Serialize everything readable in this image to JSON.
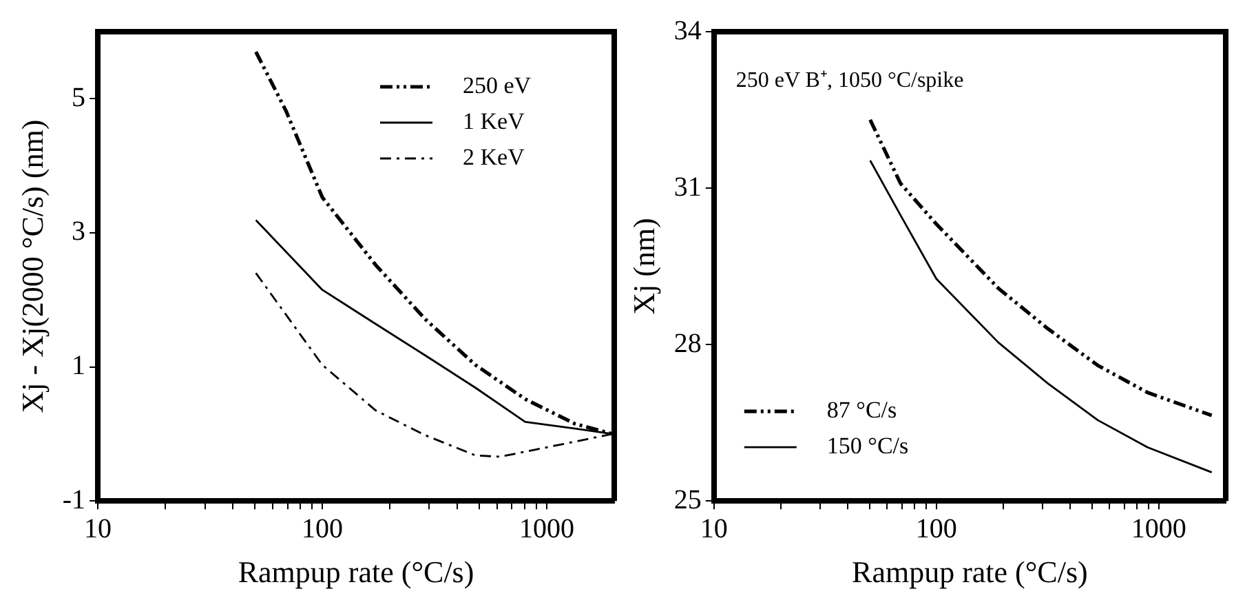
{
  "chart_data": [
    {
      "type": "line",
      "xlabel": "Rampup rate (°C/s)",
      "ylabel": "Xj - Xj(2000 °C/s) (nm)",
      "log": "x",
      "xlim": [
        10,
        2000
      ],
      "ylim": [
        -1,
        6
      ],
      "xticks": [
        10,
        {
          "value": 20,
          "label": null
        },
        {
          "value": 30,
          "label": null
        },
        {
          "value": 40,
          "label": null
        },
        {
          "value": 50,
          "label": null
        },
        {
          "value": 60,
          "label": null
        },
        {
          "value": 70,
          "label": null
        },
        {
          "value": 80,
          "label": null
        },
        {
          "value": 90,
          "label": null
        },
        100,
        {
          "value": 200,
          "label": null
        },
        {
          "value": 300,
          "label": null
        },
        {
          "value": 400,
          "label": null
        },
        {
          "value": 500,
          "label": null
        },
        {
          "value": 600,
          "label": null
        },
        {
          "value": 700,
          "label": null
        },
        {
          "value": 800,
          "label": null
        },
        {
          "value": 900,
          "label": null
        },
        1000
      ],
      "yticks": [
        -1,
        1,
        3,
        5
      ],
      "grid": false,
      "legend": "top right",
      "series": [
        {
          "name": "250 eV",
          "color": "#000000",
          "line_style": "dashed",
          "x": [
            50.6,
            68.9,
            100,
            173,
            288,
            481,
            802,
            1339,
            1963
          ],
          "values": [
            5.7,
            4.82,
            3.53,
            2.52,
            1.71,
            1.03,
            0.52,
            0.15,
            0
          ]
        },
        {
          "name": "1 KeV",
          "color": "#000000",
          "line_style": "solid",
          "x": [
            50.6,
            100,
            173,
            288,
            481,
            802,
            1339,
            1963
          ],
          "values": [
            3.19,
            2.15,
            1.64,
            1.17,
            0.69,
            0.18,
            0.08,
            0
          ]
        },
        {
          "name": "2 KeV",
          "color": "#000000",
          "line_style": "dotted",
          "x": [
            50.6,
            100,
            173,
            288,
            481,
            621,
            1037,
            1963
          ],
          "values": [
            2.4,
            1.03,
            0.35,
            -0.02,
            -0.32,
            -0.34,
            -0.19,
            0
          ]
        }
      ]
    },
    {
      "type": "line",
      "xlabel": "Rampup rate (°C/s)",
      "ylabel": "Xj (nm)",
      "log": "x",
      "xlim": [
        10,
        2000
      ],
      "ylim": [
        25,
        34
      ],
      "xticks": [
        10,
        {
          "value": 20,
          "label": null
        },
        {
          "value": 30,
          "label": null
        },
        {
          "value": 40,
          "label": null
        },
        {
          "value": 50,
          "label": null
        },
        {
          "value": 60,
          "label": null
        },
        {
          "value": 70,
          "label": null
        },
        {
          "value": 80,
          "label": null
        },
        {
          "value": 90,
          "label": null
        },
        100,
        {
          "value": 200,
          "label": null
        },
        {
          "value": 300,
          "label": null
        },
        {
          "value": 400,
          "label": null
        },
        {
          "value": 500,
          "label": null
        },
        {
          "value": 600,
          "label": null
        },
        {
          "value": 700,
          "label": null
        },
        {
          "value": 800,
          "label": null
        },
        {
          "value": 900,
          "label": null
        },
        1000
      ],
      "yticks": [
        25,
        28,
        31,
        34
      ],
      "grid": false,
      "legend": "bottom left",
      "annotations": [
        "250 eV B⁺, 1050 °C/spike"
      ],
      "series": [
        {
          "name": "87 °C/s",
          "color": "#000000",
          "line_style": "dashed",
          "x": [
            50.4,
            69,
            100,
            190,
            318,
            532,
            890,
            1730
          ],
          "values": [
            32.31,
            31.09,
            30.31,
            29.08,
            28.3,
            27.6,
            27.08,
            26.64
          ]
        },
        {
          "name": "150 °C/s",
          "color": "#000000",
          "line_style": "solid",
          "x": [
            50.4,
            69,
            100,
            190,
            318,
            532,
            890,
            1730
          ],
          "values": [
            31.53,
            30.48,
            29.26,
            28.04,
            27.25,
            26.55,
            26.03,
            25.55
          ]
        }
      ]
    }
  ]
}
